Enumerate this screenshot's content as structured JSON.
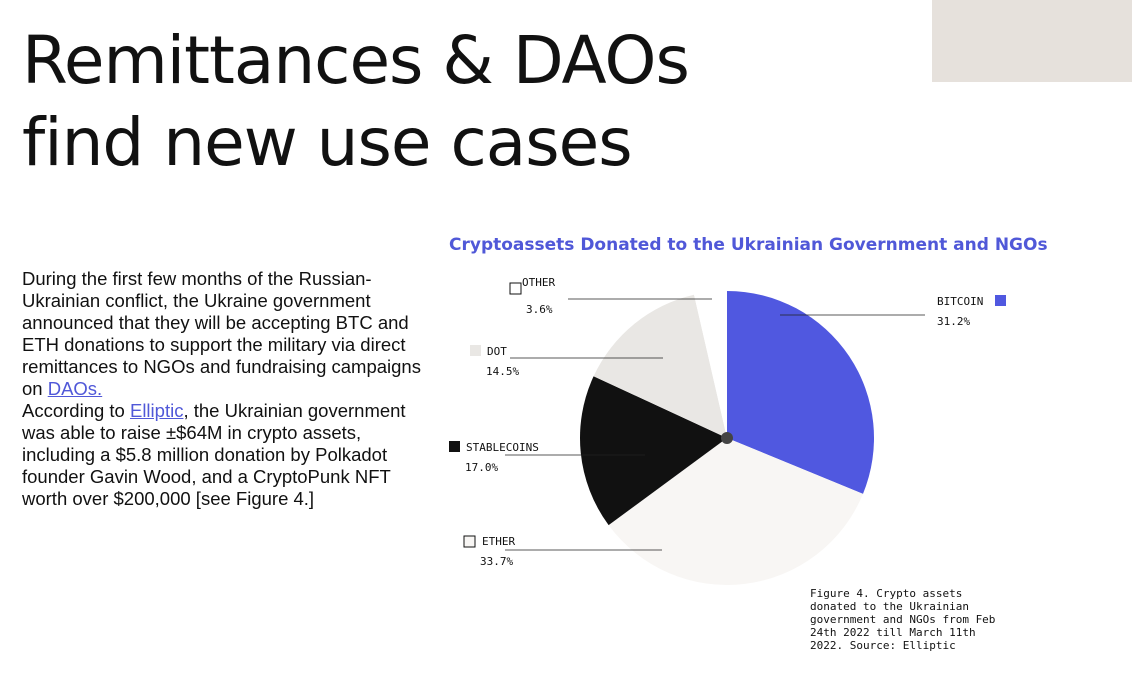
{
  "header": {
    "title_line1": "Remittances & DAOs",
    "title_line2": "find new use cases"
  },
  "body": {
    "p1_text": "During the first few months of the Russian-Ukrainian conflict, the Ukraine government announced that they will be accepting BTC and ETH donations to support the military via direct remittances to NGOs and fundraising campaigns on ",
    "p1_link": "DAOs.",
    "p2_prefix": "According to ",
    "p2_link": "Elliptic",
    "p2_text": ", the Ukrainian government was able to raise ±$64M in crypto assets, including a $5.8 million donation by Polkadot founder Gavin Wood, and a CryptoPunk NFT worth over $200,000 [see Figure 4.]"
  },
  "caption": "Figure 4. Crypto assets donated to the Ukrainian government and NGOs from Feb 24th 2022 till March 11th 2022. Source: Elliptic",
  "chart_data": {
    "type": "pie",
    "title": "Cryptoassets Donated to the Ukrainian Government and NGOs",
    "slices": [
      {
        "label": "BITCOIN",
        "value": 31.2,
        "value_label": "31.2%",
        "color": "#5058e0"
      },
      {
        "label": "ETHER",
        "value": 33.7,
        "value_label": "33.7%",
        "color": "#f8f6f4"
      },
      {
        "label": "STABLECOINS",
        "value": 17.0,
        "value_label": "17.0%",
        "color": "#111111"
      },
      {
        "label": "DOT",
        "value": 14.5,
        "value_label": "14.5%",
        "color": "#e9e7e4"
      },
      {
        "label": "OTHER",
        "value": 3.6,
        "value_label": "3.6%",
        "color": "#ffffff"
      }
    ],
    "start_angle_deg": 0,
    "direction": "clockwise"
  },
  "colors": {
    "accent": "#5058d8",
    "corner_block": "#e6e1dc",
    "text": "#111111"
  }
}
